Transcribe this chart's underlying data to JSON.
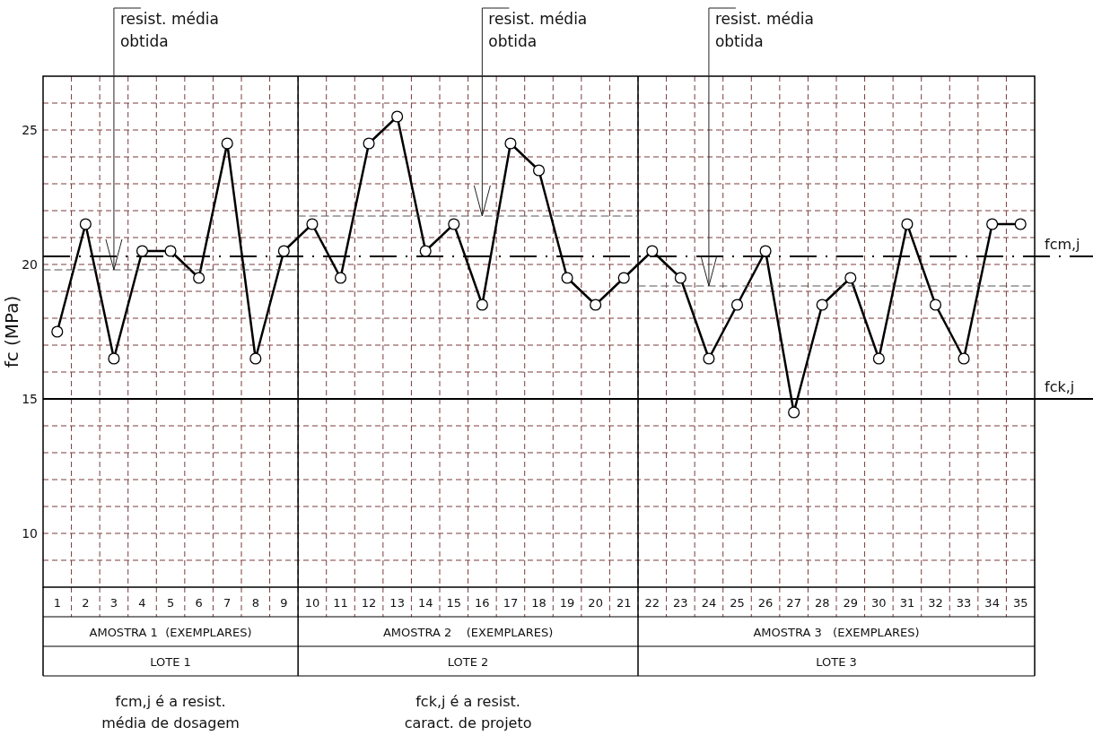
{
  "chart_data": {
    "type": "line",
    "ylabel": "fc (MPa)",
    "x": [
      1,
      2,
      3,
      4,
      5,
      6,
      7,
      8,
      9,
      10,
      11,
      12,
      13,
      14,
      15,
      16,
      17,
      18,
      19,
      20,
      21,
      22,
      23,
      24,
      25,
      26,
      27,
      28,
      29,
      30,
      31,
      32,
      33,
      34,
      35
    ],
    "xlim": [
      0.5,
      35.5
    ],
    "xticks": [
      1,
      2,
      3,
      4,
      5,
      6,
      7,
      8,
      9,
      10,
      11,
      12,
      13,
      14,
      15,
      16,
      17,
      18,
      19,
      20,
      21,
      22,
      23,
      24,
      25,
      26,
      27,
      28,
      29,
      30,
      31,
      32,
      33,
      34,
      35
    ],
    "ylim": [
      8,
      27
    ],
    "yticks": [
      {
        "value": 9,
        "label": null
      },
      10,
      {
        "value": 11,
        "label": null
      },
      {
        "value": 12,
        "label": null
      },
      {
        "value": 13,
        "label": null
      },
      {
        "value": 14,
        "label": null
      },
      15,
      {
        "value": 16,
        "label": null
      },
      {
        "value": 17,
        "label": null
      },
      {
        "value": 18,
        "label": null
      },
      {
        "value": 19,
        "label": null
      },
      20,
      {
        "value": 21,
        "label": null
      },
      {
        "value": 22,
        "label": null
      },
      {
        "value": 23,
        "label": null
      },
      {
        "value": 24,
        "label": null
      },
      25,
      {
        "value": 26,
        "label": null
      }
    ],
    "grid": true,
    "marker": "circle",
    "series": [
      {
        "color": "#000000",
        "line_style": "solid",
        "values": [
          17.5,
          21.5,
          16.5,
          20.5,
          20.5,
          19.5,
          24.5,
          16.5,
          20.5,
          21.5,
          19.5,
          24.5,
          25.5,
          20.5,
          21.5,
          18.5,
          24.5,
          23.5,
          19.5,
          18.5,
          19.5,
          20.5,
          19.5,
          16.5,
          18.5,
          20.5,
          14.5,
          18.5,
          19.5,
          16.5,
          21.5,
          18.5,
          16.5,
          21.5,
          21.5
        ]
      },
      {
        "type": "line",
        "color": "#555555",
        "line_style": "dashed",
        "marker": "none",
        "x": [
          0.5,
          9.5
        ],
        "values": [
          19.8,
          19.8
        ]
      },
      {
        "type": "line",
        "color": "#555555",
        "line_style": "dashed",
        "marker": "none",
        "x": [
          9.5,
          21.5
        ],
        "values": [
          21.8,
          21.8
        ]
      },
      {
        "type": "line",
        "color": "#555555",
        "line_style": "dashed",
        "marker": "none",
        "x": [
          21.5,
          35.5
        ],
        "values": [
          19.2,
          19.2
        ]
      }
    ],
    "ref_lines": [
      {
        "axis": "y",
        "value": 20.3,
        "label": "fcm,j",
        "color": "#000000",
        "line_style": "dashed"
      },
      {
        "axis": "y",
        "value": 15,
        "label": "fck,j",
        "color": "#000000",
        "line_style": "solid"
      },
      {
        "axis": "x",
        "value": 9.5,
        "label": null,
        "color": "#000000",
        "line_style": "solid"
      },
      {
        "axis": "x",
        "value": 21.5,
        "label": null,
        "color": "#000000",
        "line_style": "solid"
      }
    ],
    "annotations": [
      {
        "text": "resist. média\nobtida",
        "x": 3,
        "y": 19.8
      },
      {
        "text": "resist. média\nobtida",
        "x": 16,
        "y": 21.8
      },
      {
        "text": "resist. média\nobtida",
        "x": 24,
        "y": 19.2
      },
      "AMOSTRA 1  (EXEMPLARES)",
      "AMOSTRA 2    (EXEMPLARES)",
      "AMOSTRA 3   (EXEMPLARES)",
      "LOTE 1",
      "LOTE 2",
      "LOTE 3",
      "fcm,j é a resist.\nmédia de dosagem",
      "fck,j é a resist.\ncaract. de projeto"
    ]
  }
}
